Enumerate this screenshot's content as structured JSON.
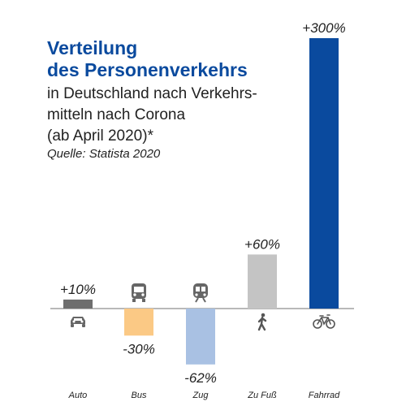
{
  "title_line1": "Verteilung",
  "title_line2": "des Personenverkehrs",
  "subtitle_line1": "in Deutschland nach Verkehrs-",
  "subtitle_line2": "mitteln nach Corona",
  "subtitle_line3": "(ab April 2020)*",
  "source": "Quelle: Statista 2020",
  "chart_data": {
    "type": "bar",
    "title": "Verteilung des Personenverkehrs",
    "subtitle": "in Deutschland nach Verkehrsmitteln nach Corona (ab April 2020)*",
    "categories": [
      "Auto",
      "Bus",
      "Zug",
      "Zu Fuß",
      "Fahrrad"
    ],
    "values": [
      10,
      -30,
      -62,
      60,
      300
    ],
    "value_labels": [
      "+10%",
      "-30%",
      "-62%",
      "+60%",
      "+300%"
    ],
    "unit": "%",
    "icons": [
      "car-icon",
      "bus-icon",
      "train-icon",
      "walking-person-icon",
      "bicycle-icon"
    ],
    "colors": [
      "#6e6e6e",
      "#fbc985",
      "#a9c1e3",
      "#c4c4c4",
      "#0a4a9e"
    ],
    "baseline_color": "#a0a0a0",
    "grid": false,
    "legend": "none"
  }
}
